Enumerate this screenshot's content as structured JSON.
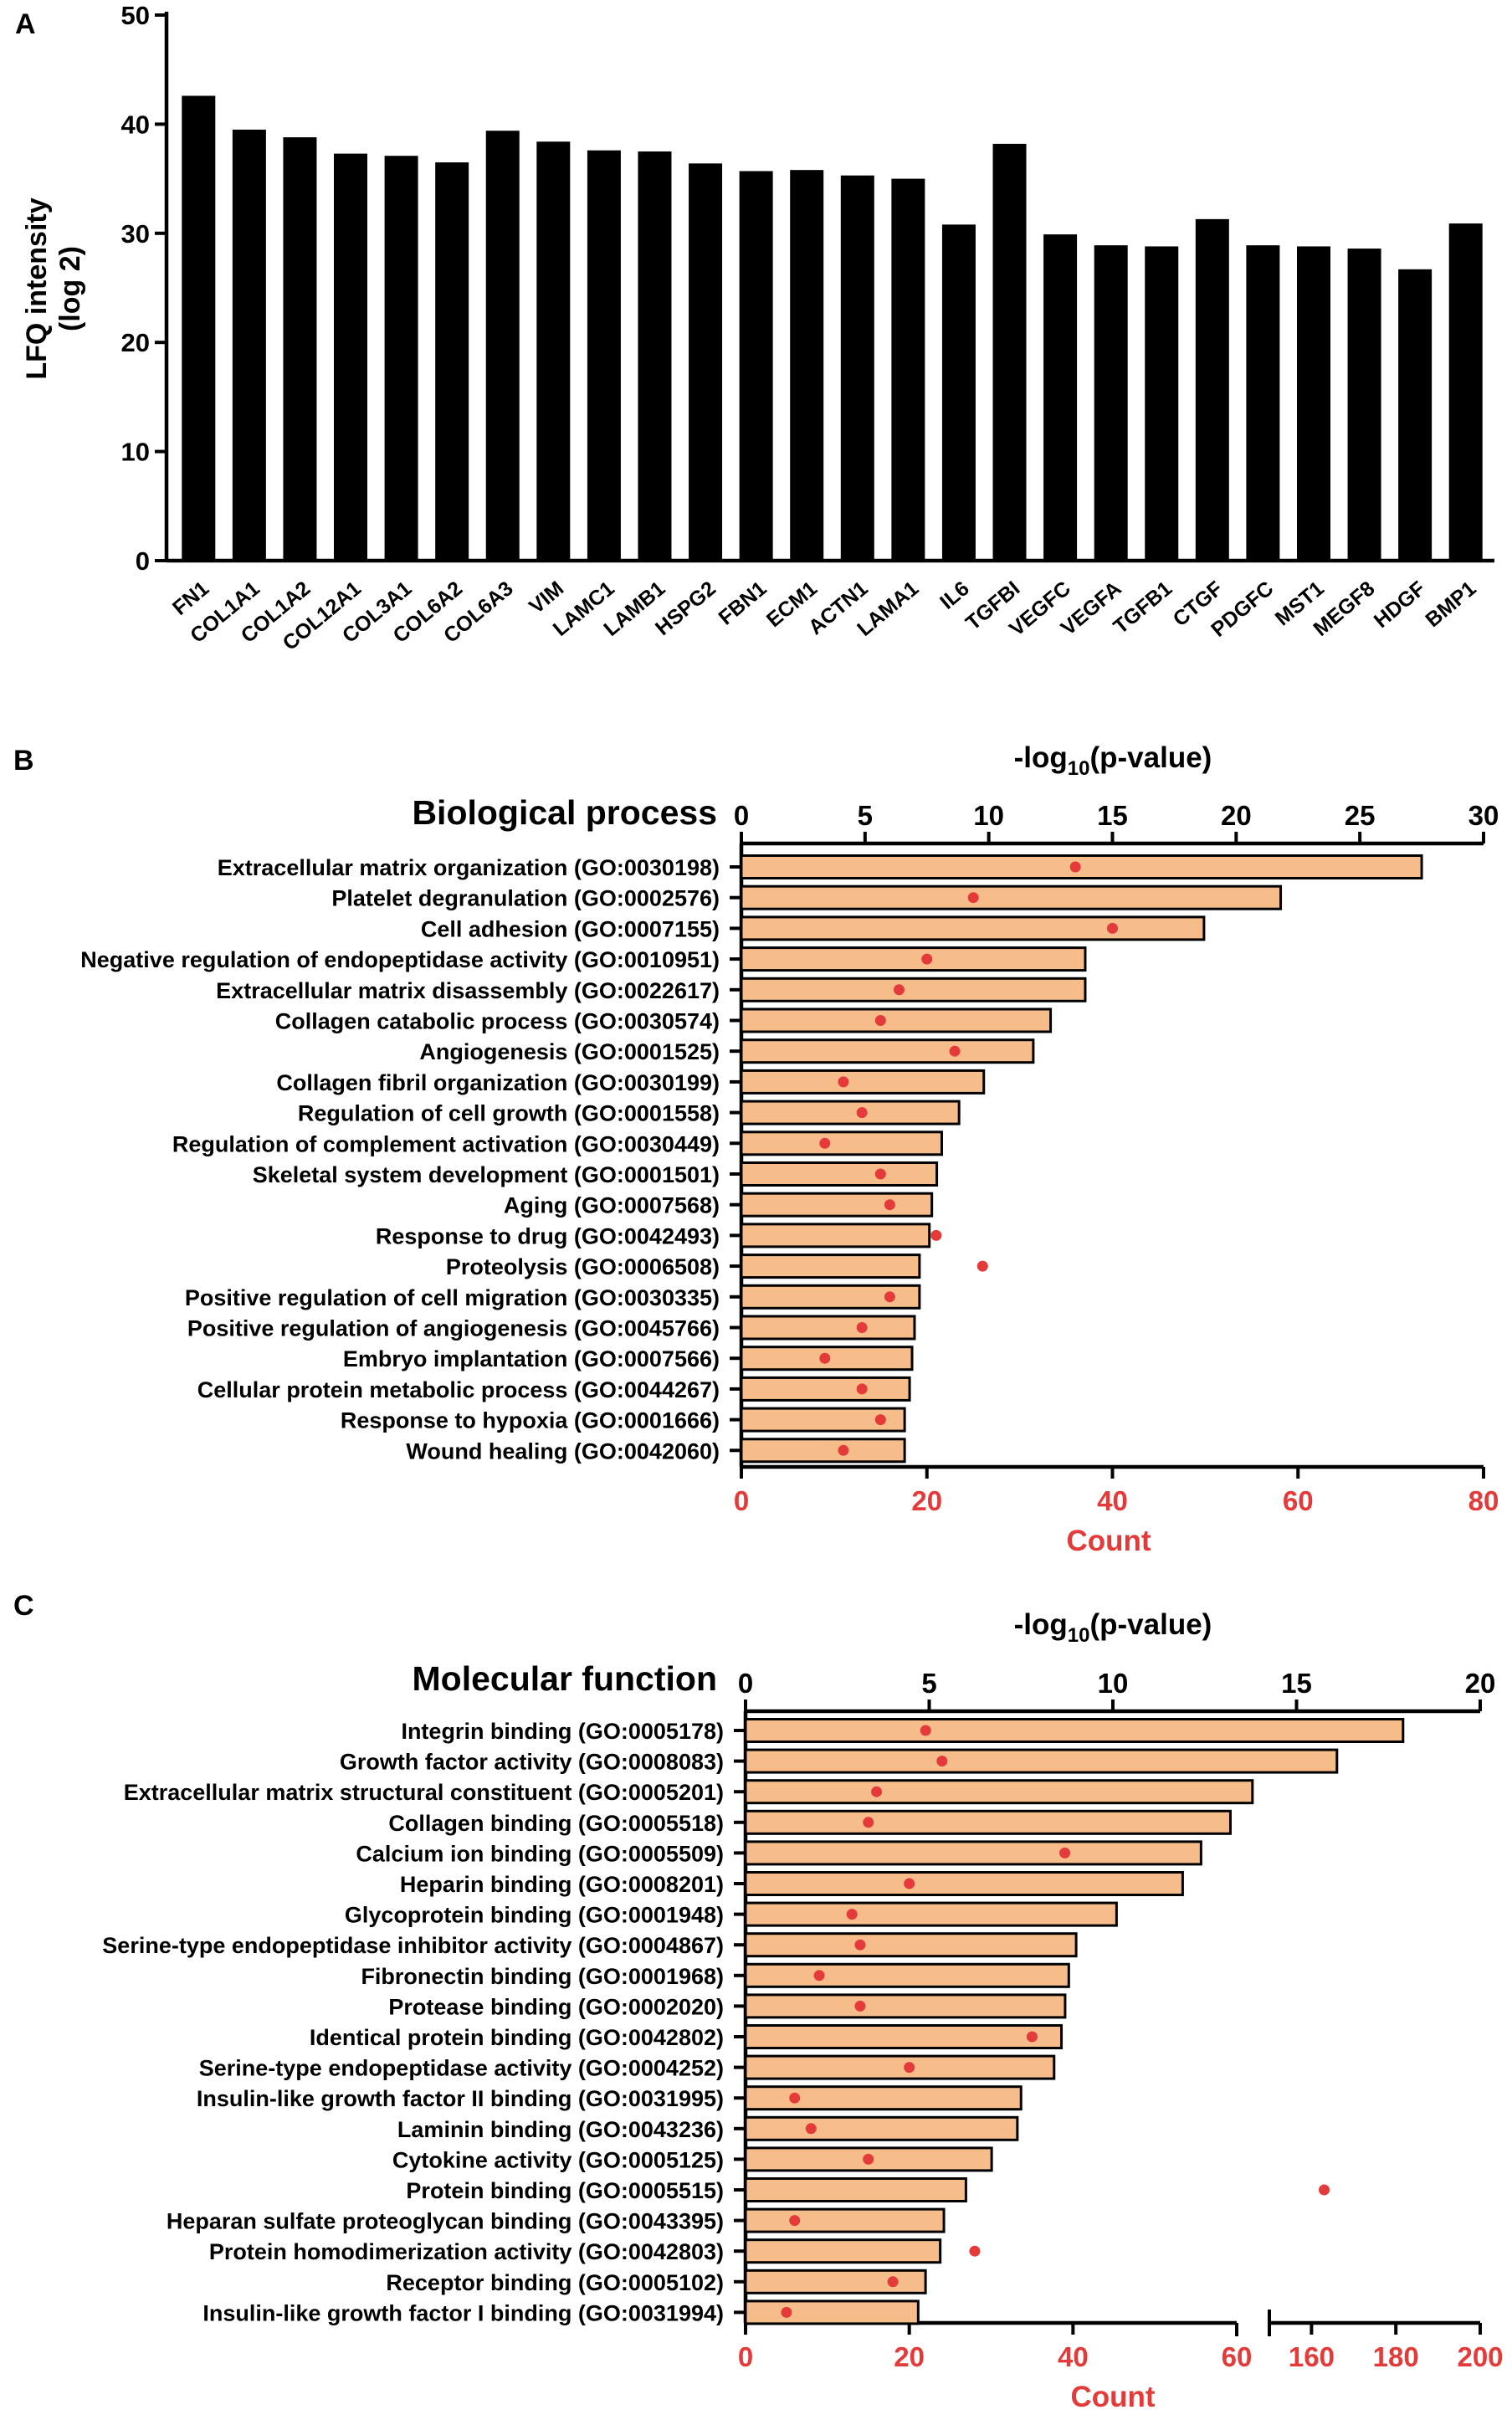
{
  "figure": {
    "background": "#ffffff"
  },
  "colors": {
    "bar_a": "#000000",
    "bar_bc": "#f6bd8a",
    "bar_stroke": "#000000",
    "count_axis": "#e43a3a",
    "dot": "#e43a3a",
    "text": "#000000"
  },
  "chart_data": [
    {
      "panel": "A",
      "type": "bar",
      "title": "",
      "xlabel": "",
      "ylabel": "LFQ intensity (log 2)",
      "ylabel_line1": "LFQ intensity",
      "ylabel_line2": "(log 2)",
      "ylim": [
        0,
        50
      ],
      "yticks": [
        0,
        10,
        20,
        30,
        40,
        50
      ],
      "grid": false,
      "categories": [
        "FN1",
        "COL1A1",
        "COL1A2",
        "COL12A1",
        "COL3A1",
        "COL6A2",
        "COL6A3",
        "VIM",
        "LAMC1",
        "LAMB1",
        "HSPG2",
        "FBN1",
        "ECM1",
        "ACTN1",
        "LAMA1",
        "IL6",
        "TGFBI",
        "VEGFC",
        "VEGFA",
        "TGFB1",
        "CTGF",
        "PDGFC",
        "MST1",
        "MEGF8",
        "HDGF",
        "BMP1"
      ],
      "values": [
        42.6,
        39.5,
        38.8,
        37.3,
        37.1,
        36.5,
        39.4,
        38.4,
        37.6,
        37.5,
        36.4,
        35.7,
        35.8,
        35.3,
        35.0,
        30.8,
        38.2,
        29.9,
        28.9,
        28.8,
        31.3,
        28.9,
        28.8,
        28.6,
        26.7,
        30.9
      ]
    },
    {
      "panel": "B",
      "type": "bar",
      "orientation": "horizontal",
      "title": "Biological process",
      "top_axis_label": "-log10(p-value)",
      "top_axis_label_main": "-log",
      "top_axis_label_sub": "10",
      "top_axis_label_tail": "(p-value)",
      "top_axis_range": [
        0,
        30
      ],
      "top_ticks": [
        0,
        5,
        10,
        15,
        20,
        25,
        30
      ],
      "bottom_axis_label": "Count",
      "bottom_axis_range": [
        0,
        80
      ],
      "bottom_ticks": [
        0,
        20,
        40,
        60,
        80
      ],
      "grid": false,
      "categories": [
        "Extracellular matrix organization (GO:0030198)",
        "Platelet degranulation (GO:0002576)",
        "Cell adhesion (GO:0007155)",
        "Negative regulation of endopeptidase activity (GO:0010951)",
        "Extracellular matrix disassembly (GO:0022617)",
        "Collagen catabolic process (GO:0030574)",
        "Angiogenesis (GO:0001525)",
        "Collagen fibril organization (GO:0030199)",
        "Regulation of cell growth (GO:0001558)",
        "Regulation of complement activation (GO:0030449)",
        "Skeletal system development (GO:0001501)",
        "Aging (GO:0007568)",
        "Response to drug (GO:0042493)",
        "Proteolysis (GO:0006508)",
        "Positive regulation of cell migration (GO:0030335)",
        "Positive regulation of angiogenesis (GO:0045766)",
        "Embryo implantation (GO:0007566)",
        "Cellular protein metabolic process (GO:0044267)",
        "Response to hypoxia (GO:0001666)",
        "Wound healing (GO:0042060)"
      ],
      "series": [
        {
          "name": "-log10(p-value)",
          "style": "bar",
          "axis": "top",
          "values": [
            27.5,
            21.8,
            18.7,
            13.9,
            13.9,
            12.5,
            11.8,
            9.8,
            8.8,
            8.1,
            7.9,
            7.7,
            7.6,
            7.2,
            7.2,
            7.0,
            6.9,
            6.8,
            6.6,
            6.6
          ]
        },
        {
          "name": "Count",
          "style": "dot",
          "axis": "bottom",
          "values": [
            36,
            25,
            40,
            20,
            17,
            15,
            23,
            11,
            13,
            9,
            15,
            16,
            21,
            26,
            16,
            13,
            9,
            13,
            15,
            11
          ]
        }
      ]
    },
    {
      "panel": "C",
      "type": "bar",
      "orientation": "horizontal",
      "title": "Molecular function",
      "top_axis_label": "-log10(p-value)",
      "top_axis_label_main": "-log",
      "top_axis_label_sub": "10",
      "top_axis_label_tail": "(p-value)",
      "top_axis_range": [
        0,
        20
      ],
      "top_ticks": [
        0,
        5,
        10,
        15,
        20
      ],
      "bottom_axis_label": "Count",
      "bottom_axis_range": [
        0,
        200
      ],
      "bottom_axis_break": [
        60,
        150
      ],
      "bottom_ticks": [
        0,
        20,
        40,
        60,
        160,
        180,
        200
      ],
      "grid": false,
      "categories": [
        "Integrin binding (GO:0005178)",
        "Growth factor activity (GO:0008083)",
        "Extracellular matrix structural constituent (GO:0005201)",
        "Collagen binding (GO:0005518)",
        "Calcium ion binding (GO:0005509)",
        "Heparin binding (GO:0008201)",
        "Glycoprotein binding (GO:0001948)",
        "Serine-type endopeptidase inhibitor activity (GO:0004867)",
        "Fibronectin binding (GO:0001968)",
        "Protease binding (GO:0002020)",
        "Identical protein binding (GO:0042802)",
        "Serine-type endopeptidase activity (GO:0004252)",
        "Insulin-like growth factor II binding (GO:0031995)",
        "Laminin binding (GO:0043236)",
        "Cytokine activity (GO:0005125)",
        "Protein binding (GO:0005515)",
        "Heparan sulfate proteoglycan binding (GO:0043395)",
        "Protein homodimerization activity (GO:0042803)",
        "Receptor binding (GO:0005102)",
        "Insulin-like growth factor I binding (GO:0031994)"
      ],
      "series": [
        {
          "name": "-log10(p-value)",
          "style": "bar",
          "axis": "top",
          "values": [
            17.9,
            16.1,
            13.8,
            13.2,
            12.4,
            11.9,
            10.1,
            9.0,
            8.8,
            8.7,
            8.6,
            8.4,
            7.5,
            7.4,
            6.7,
            6.0,
            5.4,
            5.3,
            4.9,
            4.7
          ]
        },
        {
          "name": "Count",
          "style": "dot",
          "axis": "bottom",
          "values": [
            22,
            24,
            16,
            15,
            39,
            20,
            13,
            14,
            9,
            14,
            35,
            20,
            6,
            8,
            15,
            163,
            6,
            28,
            18,
            5
          ]
        }
      ]
    }
  ]
}
